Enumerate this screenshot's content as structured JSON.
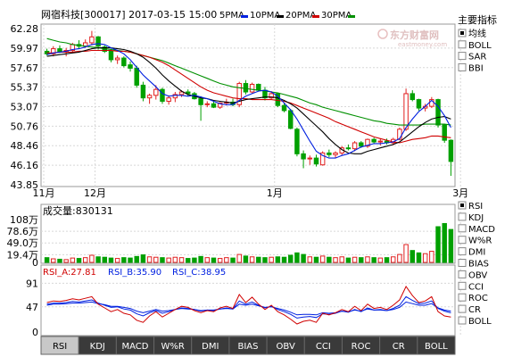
{
  "header": {
    "info": "网宿科技[300017] 2017-03-15 15:00",
    "ma5": "5PMA",
    "ma10": "10PMA",
    "ma20": "20PMA",
    "ma30": "30PMA"
  },
  "watermark": {
    "cn": "东方财富网",
    "en": "eastmoney.com"
  },
  "colors": {
    "up": "#e02020",
    "down": "#00a000",
    "ma5": "#0020e0",
    "ma10": "#000000",
    "ma20": "#d00000",
    "ma30": "#009000",
    "grid": "#d8d8d8",
    "vol_up": "#e02020",
    "vol_down": "#00a000"
  },
  "sidebar": {
    "title": "主要指标",
    "main_items": [
      {
        "label": "均线",
        "checked": true
      },
      {
        "label": "BOLL",
        "checked": false
      },
      {
        "label": "SAR",
        "checked": false
      },
      {
        "label": "BBI",
        "checked": false
      }
    ],
    "vol_items": [
      {
        "label": "RSI",
        "checked": true
      },
      {
        "label": "KDJ",
        "checked": false
      },
      {
        "label": "MACD",
        "checked": false
      },
      {
        "label": "W%R",
        "checked": false
      },
      {
        "label": "DMI",
        "checked": false
      },
      {
        "label": "BIAS",
        "checked": false
      },
      {
        "label": "OBV",
        "checked": false
      },
      {
        "label": "CCI",
        "checked": false
      },
      {
        "label": "ROC",
        "checked": false
      },
      {
        "label": "CR",
        "checked": false
      },
      {
        "label": "BOLL",
        "checked": false
      }
    ]
  },
  "volume": {
    "label": "成交量:830131",
    "yticks": [
      "108万",
      "78.6万",
      "49.0万",
      "19.4万",
      "0"
    ]
  },
  "rsi": {
    "labels": [
      "RSI_A:27.81",
      "RSI_B:35.90",
      "RSI_C:38.95"
    ],
    "yticks": [
      "91",
      "47",
      "0"
    ]
  },
  "tabs": [
    "RSI",
    "KDJ",
    "MACD",
    "W%R",
    "DMI",
    "BIAS",
    "OBV",
    "CCI",
    "ROC",
    "CR",
    "BOLL"
  ],
  "chart_data": {
    "type": "candlestick",
    "yticks": [
      "62.28",
      "59.97",
      "57.67",
      "55.37",
      "53.07",
      "50.76",
      "48.46",
      "46.16",
      "43.85"
    ],
    "ylim": [
      43.85,
      62.28
    ],
    "xticks": [
      {
        "label": "11月",
        "index": 0
      },
      {
        "label": "12月",
        "index": 8
      },
      {
        "label": "1月",
        "index": 36
      },
      {
        "label": "3月",
        "index": 65
      }
    ],
    "candles": [
      [
        59.6,
        59.9,
        59.1,
        59.3
      ],
      [
        59.3,
        60.2,
        59.0,
        59.9
      ],
      [
        59.9,
        60.3,
        59.4,
        59.5
      ],
      [
        59.5,
        60.0,
        59.0,
        59.7
      ],
      [
        59.7,
        60.6,
        59.5,
        60.4
      ],
      [
        60.4,
        60.9,
        59.9,
        60.2
      ],
      [
        60.2,
        61.0,
        60.0,
        60.6
      ],
      [
        60.6,
        62.0,
        60.3,
        61.3
      ],
      [
        61.3,
        61.4,
        59.8,
        60.2
      ],
      [
        60.1,
        60.3,
        59.4,
        59.6
      ],
      [
        59.6,
        59.9,
        58.3,
        58.6
      ],
      [
        58.6,
        59.1,
        58.1,
        58.8
      ],
      [
        58.8,
        59.0,
        57.7,
        57.9
      ],
      [
        58.0,
        58.4,
        57.2,
        57.6
      ],
      [
        57.6,
        57.9,
        55.3,
        55.6
      ],
      [
        55.6,
        56.0,
        53.7,
        54.1
      ],
      [
        54.1,
        54.6,
        53.4,
        54.4
      ],
      [
        54.4,
        55.6,
        53.9,
        55.1
      ],
      [
        55.1,
        55.3,
        53.4,
        53.7
      ],
      [
        53.7,
        54.4,
        53.3,
        54.1
      ],
      [
        54.1,
        54.8,
        53.6,
        54.5
      ],
      [
        54.5,
        55.0,
        54.2,
        54.8
      ],
      [
        54.8,
        55.1,
        54.3,
        54.6
      ],
      [
        54.6,
        54.8,
        53.9,
        54.0
      ],
      [
        54.0,
        54.3,
        51.4,
        53.3
      ],
      [
        53.3,
        53.7,
        53.0,
        53.4
      ],
      [
        53.4,
        53.8,
        52.9,
        53.0
      ],
      [
        53.0,
        53.6,
        52.8,
        53.5
      ],
      [
        53.5,
        54.0,
        53.2,
        53.6
      ],
      [
        53.6,
        54.0,
        53.1,
        53.3
      ],
      [
        53.3,
        56.0,
        53.0,
        55.8
      ],
      [
        55.8,
        56.2,
        54.5,
        54.8
      ],
      [
        54.8,
        55.9,
        54.6,
        55.7
      ],
      [
        55.7,
        55.8,
        54.9,
        55.0
      ],
      [
        55.0,
        55.4,
        53.8,
        54.1
      ],
      [
        54.1,
        54.9,
        53.9,
        54.6
      ],
      [
        54.6,
        54.7,
        53.0,
        53.2
      ],
      [
        53.2,
        53.5,
        52.4,
        52.6
      ],
      [
        52.6,
        52.8,
        50.4,
        50.5
      ],
      [
        50.4,
        50.6,
        47.2,
        47.5
      ],
      [
        47.5,
        47.9,
        45.8,
        46.9
      ],
      [
        46.9,
        47.3,
        46.2,
        47.0
      ],
      [
        47.0,
        47.4,
        46.0,
        46.3
      ],
      [
        46.2,
        47.8,
        46.1,
        47.6
      ],
      [
        47.6,
        48.0,
        47.1,
        47.4
      ],
      [
        47.4,
        47.8,
        47.0,
        47.6
      ],
      [
        47.6,
        48.4,
        47.3,
        48.2
      ],
      [
        48.2,
        48.6,
        47.9,
        48.1
      ],
      [
        48.1,
        49.0,
        47.8,
        48.8
      ],
      [
        48.8,
        49.0,
        48.2,
        48.4
      ],
      [
        48.4,
        49.3,
        48.2,
        49.2
      ],
      [
        49.2,
        49.4,
        48.7,
        48.9
      ],
      [
        48.9,
        49.3,
        48.5,
        49.0
      ],
      [
        49.0,
        49.3,
        48.6,
        48.8
      ],
      [
        48.8,
        49.4,
        48.5,
        49.2
      ],
      [
        49.2,
        50.6,
        49.1,
        50.4
      ],
      [
        50.4,
        55.2,
        50.2,
        54.6
      ],
      [
        54.6,
        55.0,
        53.7,
        53.9
      ],
      [
        53.9,
        54.0,
        52.6,
        52.9
      ],
      [
        52.9,
        53.4,
        52.5,
        53.1
      ],
      [
        53.1,
        54.2,
        52.9,
        53.9
      ],
      [
        53.9,
        54.0,
        50.6,
        50.9
      ],
      [
        50.9,
        51.0,
        48.8,
        49.1
      ],
      [
        49.1,
        49.2,
        44.9,
        46.6
      ]
    ],
    "ma5": [
      59.2,
      59.4,
      59.5,
      59.6,
      59.8,
      59.9,
      60.1,
      60.4,
      60.5,
      60.4,
      60.0,
      59.7,
      59.3,
      58.6,
      57.7,
      56.8,
      56.1,
      55.4,
      54.6,
      54.3,
      54.4,
      54.4,
      54.3,
      54.4,
      54.2,
      54.0,
      53.7,
      53.4,
      53.3,
      53.3,
      53.8,
      54.3,
      54.6,
      54.9,
      55.0,
      54.8,
      54.3,
      53.5,
      52.7,
      51.6,
      50.3,
      49.0,
      47.8,
      47.3,
      47.0,
      47.0,
      47.3,
      47.5,
      47.9,
      48.3,
      48.5,
      48.7,
      48.7,
      48.8,
      48.9,
      49.3,
      50.6,
      51.6,
      52.5,
      53.1,
      53.8,
      53.1,
      52.0,
      50.6
    ],
    "ma10": [
      59.0,
      59.1,
      59.2,
      59.3,
      59.4,
      59.5,
      59.7,
      59.9,
      60.0,
      60.0,
      60.0,
      59.9,
      59.8,
      59.6,
      59.3,
      58.9,
      58.3,
      57.6,
      56.8,
      56.1,
      55.5,
      54.9,
      54.5,
      54.3,
      54.1,
      54.0,
      53.8,
      53.7,
      53.6,
      53.5,
      53.7,
      53.9,
      54.0,
      54.1,
      54.2,
      54.2,
      54.1,
      53.8,
      53.4,
      52.9,
      52.2,
      51.5,
      50.8,
      50.1,
      49.3,
      48.6,
      48.0,
      47.6,
      47.5,
      47.5,
      47.8,
      48.0,
      48.2,
      48.4,
      48.6,
      48.9,
      49.5,
      50.1,
      50.7,
      51.2,
      51.6,
      51.8,
      51.9,
      51.6
    ],
    "ma20": [
      59.4,
      59.4,
      59.5,
      59.5,
      59.5,
      59.6,
      59.6,
      59.7,
      59.7,
      59.7,
      59.7,
      59.6,
      59.6,
      59.5,
      59.3,
      59.1,
      58.9,
      58.6,
      58.3,
      57.9,
      57.4,
      56.9,
      56.4,
      55.9,
      55.4,
      55.0,
      54.7,
      54.5,
      54.3,
      54.1,
      54.0,
      54.0,
      53.9,
      53.9,
      53.9,
      53.9,
      53.8,
      53.7,
      53.5,
      53.2,
      52.9,
      52.6,
      52.3,
      52.0,
      51.7,
      51.3,
      51.0,
      50.7,
      50.4,
      50.1,
      49.8,
      49.5,
      49.3,
      49.1,
      48.9,
      48.8,
      49.0,
      49.2,
      49.3,
      49.4,
      49.6,
      49.6,
      49.5,
      49.4
    ],
    "ma30": [
      61.1,
      60.9,
      60.7,
      60.6,
      60.4,
      60.3,
      60.2,
      60.1,
      60.0,
      59.9,
      59.8,
      59.7,
      59.6,
      59.5,
      59.3,
      59.1,
      58.9,
      58.7,
      58.5,
      58.2,
      57.9,
      57.6,
      57.3,
      57.0,
      56.7,
      56.4,
      56.1,
      55.8,
      55.6,
      55.4,
      55.3,
      55.2,
      55.1,
      55.0,
      54.9,
      54.8,
      54.7,
      54.5,
      54.3,
      54.1,
      53.8,
      53.5,
      53.3,
      53.0,
      52.8,
      52.6,
      52.4,
      52.2,
      52.0,
      51.8,
      51.6,
      51.4,
      51.3,
      51.1,
      51.0,
      50.9,
      50.9,
      50.9,
      50.9,
      51.0,
      51.0,
      51.0,
      51.0,
      50.9
    ],
    "volume_max": 108,
    "volume": [
      12,
      9,
      8,
      7,
      11,
      10,
      12,
      18,
      14,
      13,
      11,
      10,
      12,
      11,
      15,
      19,
      14,
      13,
      12,
      11,
      13,
      12,
      10,
      11,
      15,
      12,
      11,
      10,
      12,
      11,
      20,
      16,
      14,
      13,
      12,
      13,
      14,
      13,
      18,
      24,
      20,
      14,
      13,
      16,
      13,
      12,
      14,
      11,
      13,
      12,
      14,
      12,
      11,
      12,
      14,
      20,
      45,
      30,
      24,
      22,
      28,
      90,
      98,
      83
    ],
    "rsi_a": [
      55,
      58,
      57,
      59,
      62,
      60,
      63,
      66,
      52,
      45,
      38,
      42,
      35,
      32,
      22,
      18,
      30,
      38,
      28,
      35,
      42,
      48,
      46,
      40,
      36,
      40,
      38,
      45,
      48,
      44,
      70,
      55,
      65,
      52,
      42,
      50,
      38,
      32,
      24,
      15,
      20,
      22,
      18,
      35,
      32,
      36,
      42,
      38,
      48,
      40,
      52,
      44,
      46,
      42,
      50,
      60,
      85,
      68,
      55,
      58,
      66,
      38,
      30,
      27.81
    ],
    "rsi_b": [
      52,
      54,
      54,
      55,
      57,
      56,
      58,
      60,
      54,
      50,
      46,
      47,
      43,
      41,
      34,
      30,
      36,
      40,
      35,
      38,
      42,
      45,
      44,
      42,
      39,
      41,
      40,
      43,
      45,
      43,
      58,
      52,
      56,
      50,
      45,
      48,
      42,
      38,
      33,
      26,
      28,
      29,
      27,
      34,
      33,
      35,
      39,
      37,
      42,
      38,
      45,
      41,
      42,
      40,
      44,
      50,
      66,
      59,
      53,
      54,
      58,
      44,
      39,
      35.9
    ],
    "rsi_c": [
      50,
      52,
      52,
      53,
      54,
      54,
      55,
      56,
      53,
      51,
      48,
      48,
      46,
      44,
      39,
      36,
      39,
      42,
      39,
      40,
      42,
      44,
      43,
      42,
      40,
      41,
      41,
      43,
      44,
      43,
      52,
      50,
      52,
      49,
      46,
      47,
      44,
      41,
      37,
      32,
      33,
      33,
      32,
      36,
      35,
      36,
      39,
      38,
      41,
      39,
      43,
      41,
      41,
      40,
      42,
      46,
      56,
      53,
      50,
      50,
      53,
      45,
      41,
      38.95
    ]
  }
}
